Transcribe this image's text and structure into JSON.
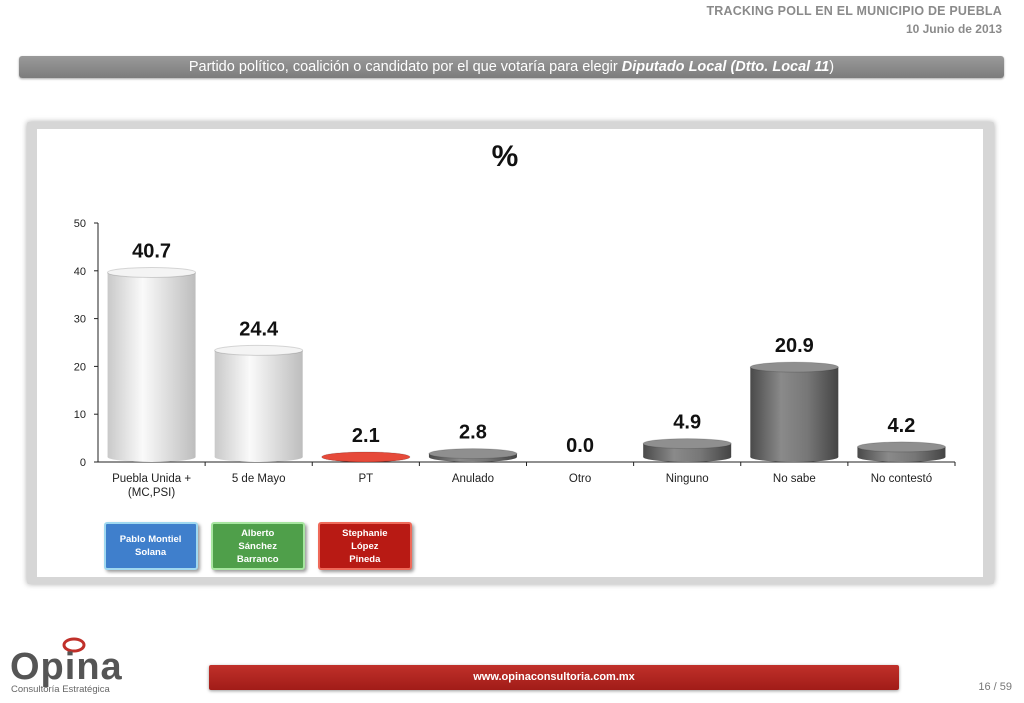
{
  "header": {
    "title": "TRACKING POLL EN EL MUNICIPIO DE PUEBLA",
    "date": "10 Junio de 2013"
  },
  "question": {
    "prefix": "Partido político, coalición  o candidato por el que votaría para  elegir ",
    "emphasis": "Diputado Local (Dtto. Local 11",
    "suffix": ")"
  },
  "chart_data": {
    "type": "bar",
    "title": "%",
    "categories": [
      "Puebla Unida + (MC,PSI)",
      "5 de Mayo",
      "PT",
      "Anulado",
      "Otro",
      "Ninguno",
      "No sabe",
      "No contestó"
    ],
    "category_lines": [
      [
        "Puebla Unida +",
        "(MC,PSI)"
      ],
      [
        "5 de Mayo"
      ],
      [
        "PT"
      ],
      [
        "Anulado"
      ],
      [
        "Otro"
      ],
      [
        "Ninguno"
      ],
      [
        "No sabe"
      ],
      [
        "No contestó"
      ]
    ],
    "values": [
      40.7,
      24.4,
      2.1,
      2.8,
      0.0,
      4.9,
      20.9,
      4.2
    ],
    "value_labels": [
      "40.7",
      "24.4",
      "2.1",
      "2.8",
      "0.0",
      "4.9",
      "20.9",
      "4.2"
    ],
    "bar_colors": [
      "#e8e8e8",
      "#eeeeee",
      "#d01f1f",
      "#6a6a6a",
      "#6a6a6a",
      "#6a6a6a",
      "#6a6a6a",
      "#6a6a6a"
    ],
    "ylim": [
      0,
      50
    ],
    "yticks": [
      "0",
      "10",
      "20",
      "30",
      "40",
      "50"
    ],
    "grid": false
  },
  "candidates": [
    {
      "name_line1": "Pablo Montiel",
      "name_line2": "Solana",
      "color": "#3f7fcc",
      "border": "#9fd8f0"
    },
    {
      "name_line1": "Alberto Sánchez",
      "name_line2": "Barranco",
      "color": "#4f9f4a",
      "border": "#a7e6a0"
    },
    {
      "name_line1": "Stephanie López",
      "name_line2": "Pineda",
      "color": "#b81a14",
      "border": "#ef6a5a"
    }
  ],
  "logo": {
    "word": "Opina",
    "sub": "Consultoría Estratégica"
  },
  "footer": {
    "url": "www.opinaconsultoria.com.mx",
    "page": "16 / 59"
  }
}
